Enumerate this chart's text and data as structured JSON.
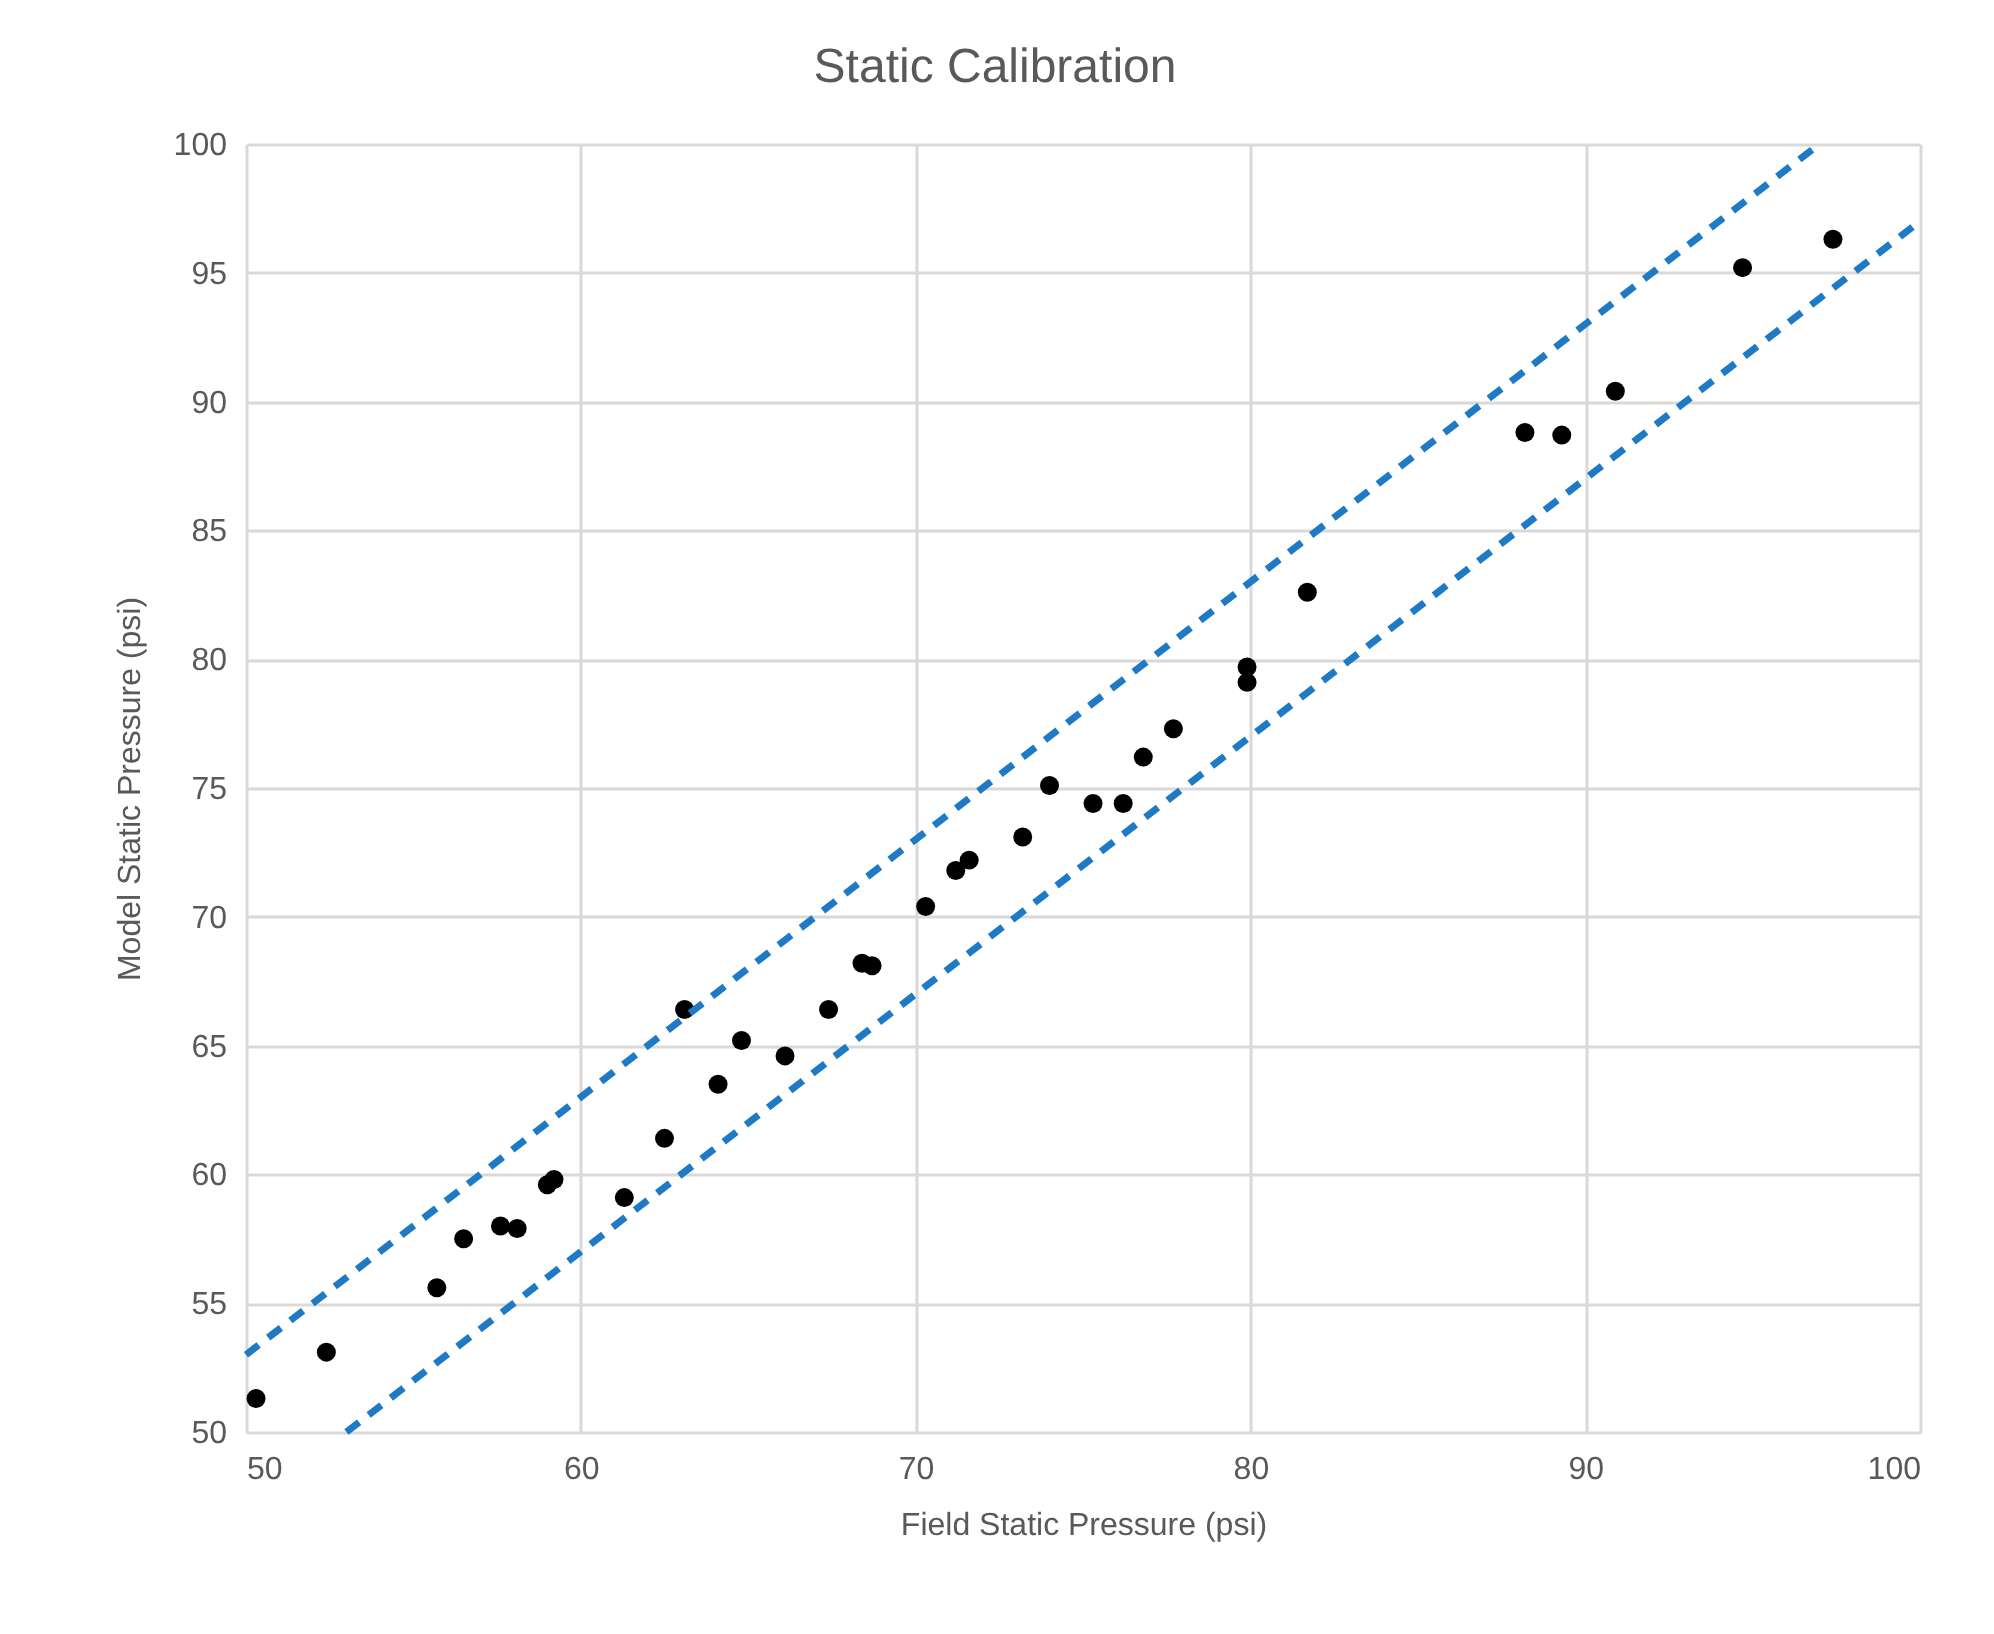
{
  "chart_data": {
    "type": "scatter",
    "title": "Static Calibration",
    "xlabel": "Field Static Pressure (psi)",
    "ylabel": "Model Static Pressure (psi)",
    "xlim": [
      50,
      100
    ],
    "ylim": [
      50,
      100
    ],
    "xticks": [
      50,
      60,
      70,
      80,
      90,
      100
    ],
    "yticks": [
      50,
      55,
      60,
      65,
      70,
      75,
      80,
      85,
      90,
      95,
      100
    ],
    "grid": true,
    "series": [
      {
        "marker": "circle",
        "color": "#000000",
        "x": [
          50.3,
          52.4,
          55.7,
          56.5,
          57.6,
          58.1,
          59.0,
          59.2,
          61.3,
          62.5,
          63.1,
          64.1,
          64.8,
          66.1,
          67.4,
          68.4,
          68.7,
          70.3,
          71.2,
          71.6,
          73.2,
          74.0,
          75.3,
          76.2,
          76.8,
          77.7,
          79.9,
          79.9,
          81.7,
          88.2,
          89.3,
          90.9,
          94.7,
          97.4
        ],
        "values": [
          51.3,
          53.1,
          55.6,
          57.5,
          58.0,
          57.9,
          59.6,
          59.8,
          59.1,
          61.4,
          66.4,
          63.5,
          65.2,
          64.6,
          66.4,
          68.2,
          68.1,
          70.4,
          71.8,
          72.2,
          73.1,
          75.1,
          74.4,
          74.4,
          76.2,
          77.3,
          79.7,
          79.1,
          82.6,
          88.8,
          88.7,
          90.4,
          95.2,
          96.3
        ]
      },
      {
        "type": "line",
        "line_style": "dashed",
        "color": "#1f7ac5",
        "x": [
          50,
          97
        ],
        "values": [
          53,
          100
        ]
      },
      {
        "type": "line",
        "line_style": "dashed",
        "color": "#1f7ac5",
        "x": [
          53,
          100
        ],
        "values": [
          50,
          97
        ]
      }
    ]
  }
}
